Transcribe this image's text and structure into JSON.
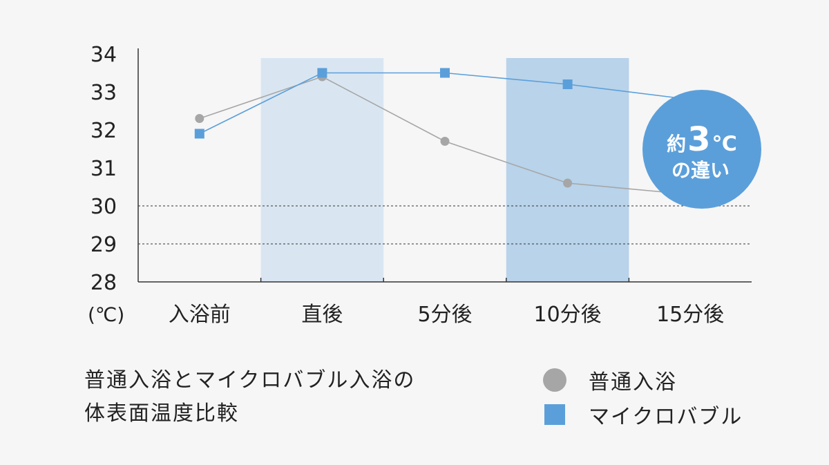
{
  "chart_data": {
    "type": "line",
    "title": "普通入浴とマイクロバブル入浴の体表面温度比較",
    "title_lines": [
      "普通入浴とマイクロバブル入浴の",
      "体表面温度比較"
    ],
    "categories": [
      "入浴前",
      "直後",
      "5分後",
      "10分後",
      "15分後"
    ],
    "unit_label": "(℃)",
    "ylim": [
      28,
      34
    ],
    "yticks": [
      28,
      29,
      30,
      31,
      32,
      33,
      34
    ],
    "dashed_gridlines": [
      29,
      30
    ],
    "highlighted_categories": [
      "直後",
      "10分後"
    ],
    "series": [
      {
        "name": "普通入浴",
        "marker": "circle",
        "color": "#a6a6a6",
        "values": [
          32.3,
          33.4,
          31.7,
          30.6,
          30.3
        ]
      },
      {
        "name": "マイクロバブル",
        "marker": "square",
        "color": "#5b9fda",
        "values": [
          31.9,
          33.5,
          33.5,
          33.2,
          32.8
        ]
      }
    ],
    "annotation": {
      "prefix": "約",
      "number": "3",
      "unit": "℃",
      "line2": "の違い"
    },
    "colors": {
      "band_light": "#d9e6f2",
      "band_dark": "#b8d3ea",
      "badge": "#5b9fda",
      "axis": "#333333",
      "background": "#f6f6f6"
    }
  }
}
